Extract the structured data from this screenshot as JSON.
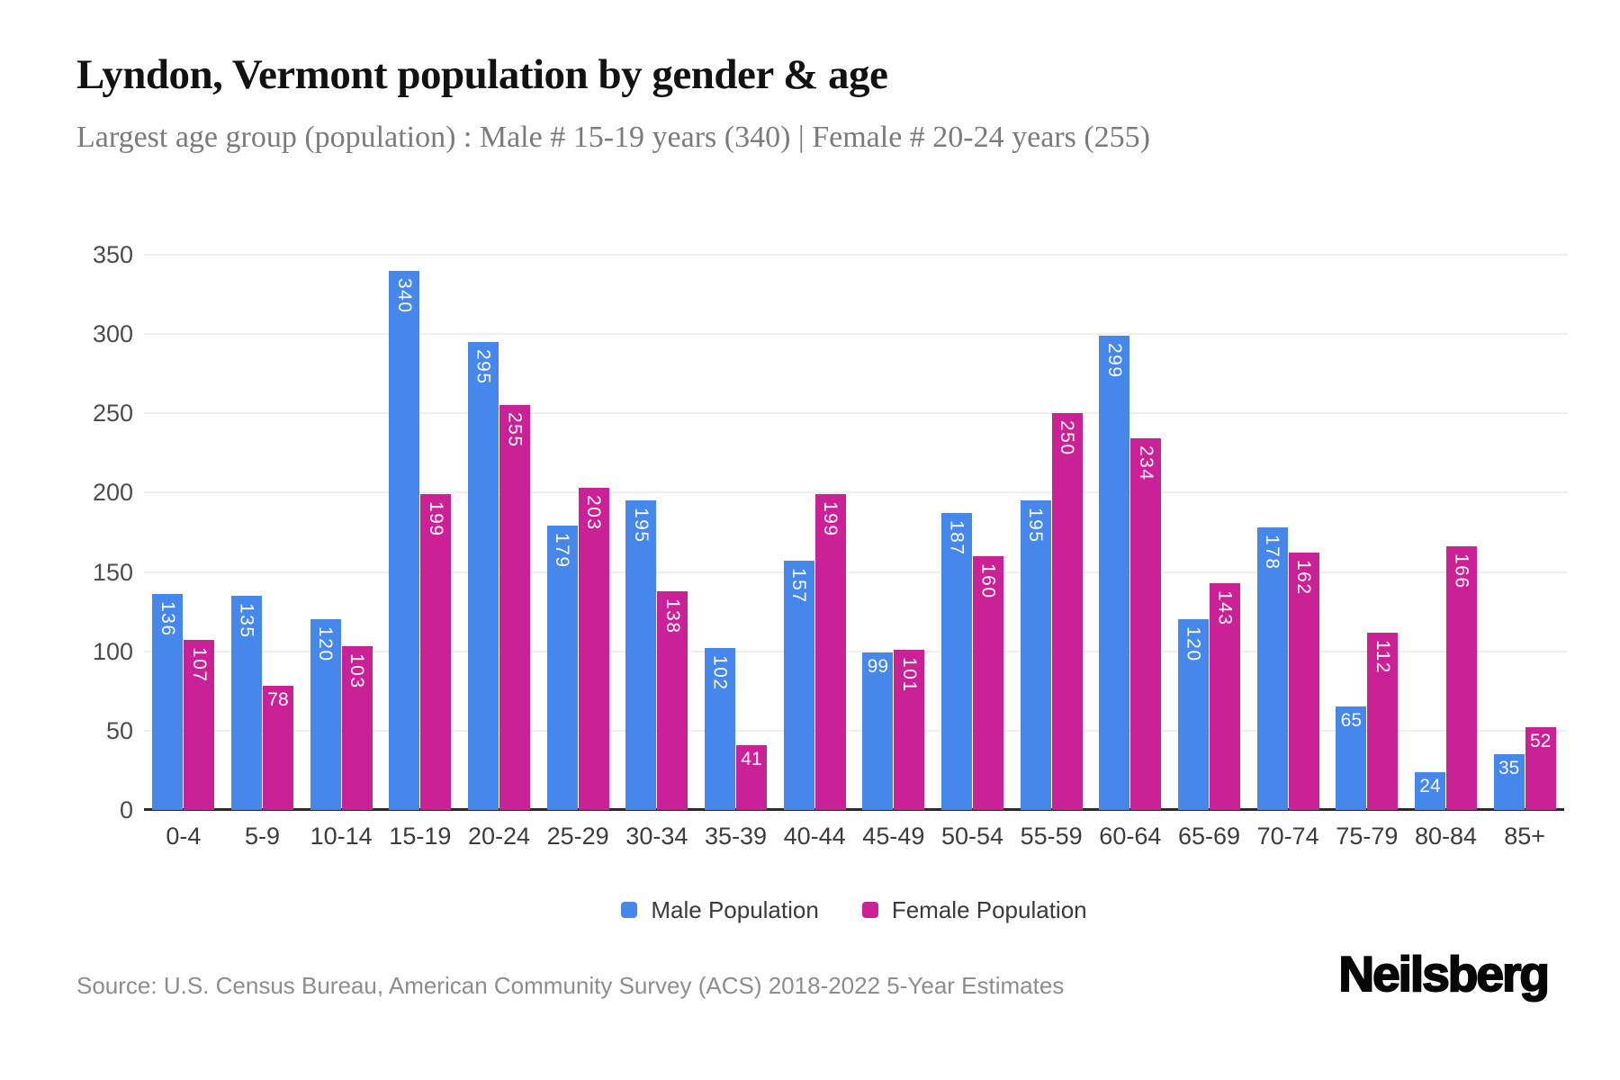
{
  "header": {
    "title": "Lyndon, Vermont population by gender & age",
    "subtitle": "Largest age group (population) : Male # 15-19 years (340) | Female # 20-24 years (255)"
  },
  "chart_data": {
    "type": "bar",
    "title": "Lyndon, Vermont population by gender & age",
    "xlabel": "",
    "ylabel": "",
    "categories": [
      "0-4",
      "5-9",
      "10-14",
      "15-19",
      "20-24",
      "25-29",
      "30-34",
      "35-39",
      "40-44",
      "45-49",
      "50-54",
      "55-59",
      "60-64",
      "65-69",
      "70-74",
      "75-79",
      "80-84",
      "85+"
    ],
    "series": [
      {
        "name": "Male Population",
        "color": "#4687ec",
        "values": [
          136,
          135,
          120,
          340,
          295,
          179,
          195,
          102,
          157,
          99,
          187,
          195,
          299,
          120,
          178,
          65,
          24,
          35
        ]
      },
      {
        "name": "Female Population",
        "color": "#cb2196",
        "values": [
          107,
          78,
          103,
          199,
          255,
          203,
          138,
          41,
          199,
          101,
          160,
          250,
          234,
          143,
          162,
          112,
          166,
          52
        ]
      }
    ],
    "ylim": [
      0,
      350
    ],
    "yticks": [
      0,
      50,
      100,
      150,
      200,
      250,
      300,
      350
    ],
    "grid": "horizontal-light",
    "legend_position": "bottom",
    "value_label_style": "white, inside bar top, rotated 90deg for 3-digit values, horizontal for 2-digit values"
  },
  "footer": {
    "source": "Source: U.S. Census Bureau, American Community Survey (ACS) 2018-2022 5-Year Estimates",
    "brand": "Neilsberg"
  }
}
